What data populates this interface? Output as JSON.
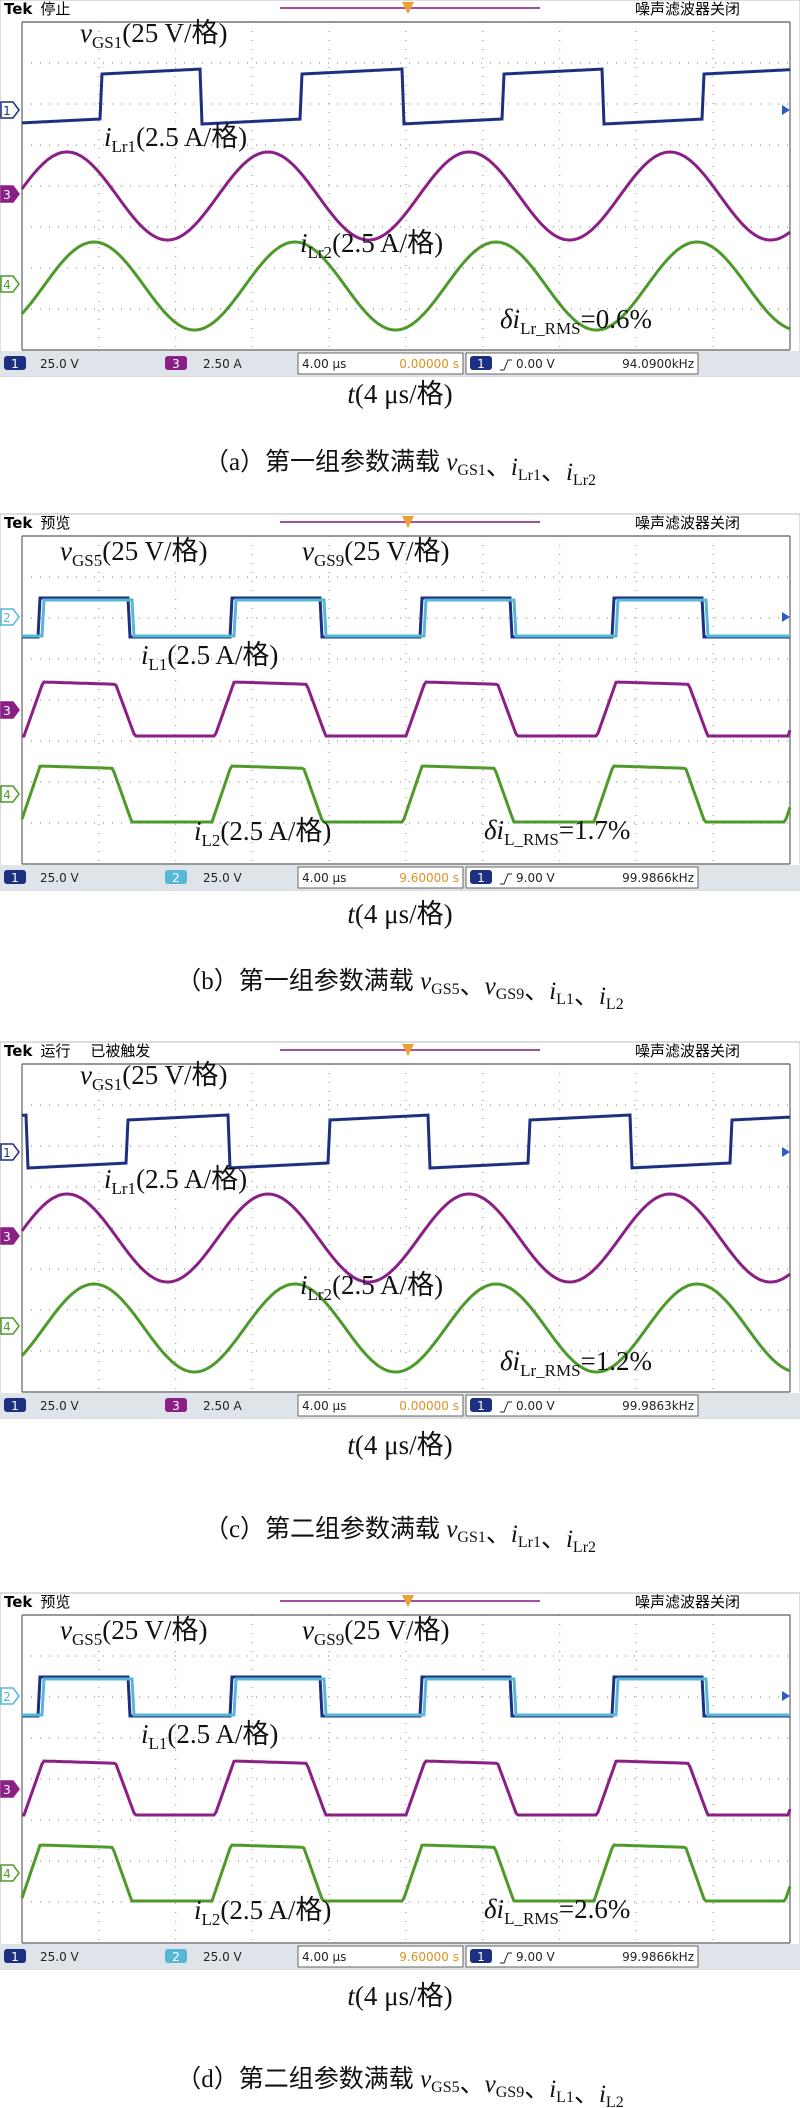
{
  "panels": [
    {
      "status": {
        "brand": "Tek",
        "state": "停止",
        "filter": "噪声滤波器关闭"
      },
      "markers": [
        "1",
        "3",
        "4"
      ],
      "signals": [
        {
          "sym": "v",
          "sub": "GS1",
          "scale": "(25 V/格)"
        },
        {
          "sym": "i",
          "sub": "Lr1",
          "scale": "(2.5 A/格)"
        },
        {
          "sym": "i",
          "sub": "Lr2",
          "scale": "(2.5 A/格)"
        }
      ],
      "ripple": {
        "sym": "δi",
        "sub": "Lr_RMS",
        "value": "=0.6%"
      },
      "bar": {
        "ch_a": "1",
        "scale_a": "25.0 V",
        "ch_b": "3",
        "scale_b": "2.50 A",
        "time": "4.00 μs",
        "position": "0.00000 s",
        "trig_ch": "1",
        "trig_level": "0.00 V",
        "freq": "94.0900kHz"
      },
      "xlabel": {
        "sym": "t",
        "text": "(4 μs/格)"
      },
      "caption": {
        "label": "（a）第一组参数满载 ",
        "separator": "、",
        "terms": [
          {
            "sym": "v",
            "sub": "GS1"
          },
          {
            "sym": "i",
            "sub": "Lr1"
          },
          {
            "sym": "i",
            "sub": "Lr2"
          }
        ]
      }
    },
    {
      "status": {
        "brand": "Tek",
        "state": "预览",
        "filter": "噪声滤波器关闭"
      },
      "markers": [
        "2",
        "3",
        "4"
      ],
      "signals": [
        {
          "sym": "v",
          "sub": "GS5",
          "scale": "(25 V/格)"
        },
        {
          "sym": "v",
          "sub": "GS9",
          "scale": "(25 V/格)"
        },
        {
          "sym": "i",
          "sub": "L1",
          "scale": "(2.5 A/格)"
        },
        {
          "sym": "i",
          "sub": "L2",
          "scale": "(2.5 A/格)"
        }
      ],
      "ripple": {
        "sym": "δi",
        "sub": "L_RMS",
        "value": "=1.7%"
      },
      "bar": {
        "ch_a": "1",
        "scale_a": "25.0 V",
        "ch_b": "2",
        "scale_b": "25.0 V",
        "time": "4.00 μs",
        "position": "9.60000 s",
        "trig_ch": "1",
        "trig_level": "9.00 V",
        "freq": "99.9866kHz"
      },
      "xlabel": {
        "sym": "t",
        "text": "(4 μs/格)"
      },
      "caption": {
        "label": "（b）第一组参数满载 ",
        "separator": "、",
        "terms": [
          {
            "sym": "v",
            "sub": "GS5"
          },
          {
            "sym": "v",
            "sub": "GS9"
          },
          {
            "sym": "i",
            "sub": "L1"
          },
          {
            "sym": "i",
            "sub": "L2"
          }
        ]
      }
    },
    {
      "status": {
        "brand": "Tek",
        "state": "运行",
        "trigger": "已被触发",
        "filter": "噪声滤波器关闭"
      },
      "markers": [
        "1",
        "3",
        "4"
      ],
      "signals": [
        {
          "sym": "v",
          "sub": "GS1",
          "scale": "(25 V/格)"
        },
        {
          "sym": "i",
          "sub": "Lr1",
          "scale": "(2.5 A/格)"
        },
        {
          "sym": "i",
          "sub": "Lr2",
          "scale": "(2.5 A/格)"
        }
      ],
      "ripple": {
        "sym": "δi",
        "sub": "Lr_RMS",
        "value": "=1.2%"
      },
      "bar": {
        "ch_a": "1",
        "scale_a": "25.0 V",
        "ch_b": "3",
        "scale_b": "2.50 A",
        "time": "4.00 μs",
        "position": "0.00000 s",
        "trig_ch": "1",
        "trig_level": "0.00 V",
        "freq": "99.9863kHz"
      },
      "xlabel": {
        "sym": "t",
        "text": "(4 μs/格)"
      },
      "caption": {
        "label": "（c）第二组参数满载 ",
        "separator": "、",
        "terms": [
          {
            "sym": "v",
            "sub": "GS1"
          },
          {
            "sym": "i",
            "sub": "Lr1"
          },
          {
            "sym": "i",
            "sub": "Lr2"
          }
        ]
      }
    },
    {
      "status": {
        "brand": "Tek",
        "state": "预览",
        "filter": "噪声滤波器关闭"
      },
      "markers": [
        "2",
        "3",
        "4"
      ],
      "signals": [
        {
          "sym": "v",
          "sub": "GS5",
          "scale": "(25 V/格)"
        },
        {
          "sym": "v",
          "sub": "GS9",
          "scale": "(25 V/格)"
        },
        {
          "sym": "i",
          "sub": "L1",
          "scale": "(2.5 A/格)"
        },
        {
          "sym": "i",
          "sub": "L2",
          "scale": "(2.5 A/格)"
        }
      ],
      "ripple": {
        "sym": "δi",
        "sub": "L_RMS",
        "value": "=2.6%"
      },
      "bar": {
        "ch_a": "1",
        "scale_a": "25.0 V",
        "ch_b": "2",
        "scale_b": "25.0 V",
        "time": "4.00 μs",
        "position": "9.60000 s",
        "trig_ch": "1",
        "trig_level": "9.00 V",
        "freq": "99.9866kHz"
      },
      "xlabel": {
        "sym": "t",
        "text": "(4 μs/格)"
      },
      "caption": {
        "label": "（d）第二组参数满载 ",
        "separator": "、",
        "terms": [
          {
            "sym": "v",
            "sub": "GS5"
          },
          {
            "sym": "v",
            "sub": "GS9"
          },
          {
            "sym": "i",
            "sub": "L1"
          },
          {
            "sym": "i",
            "sub": "L2"
          }
        ]
      }
    }
  ]
}
